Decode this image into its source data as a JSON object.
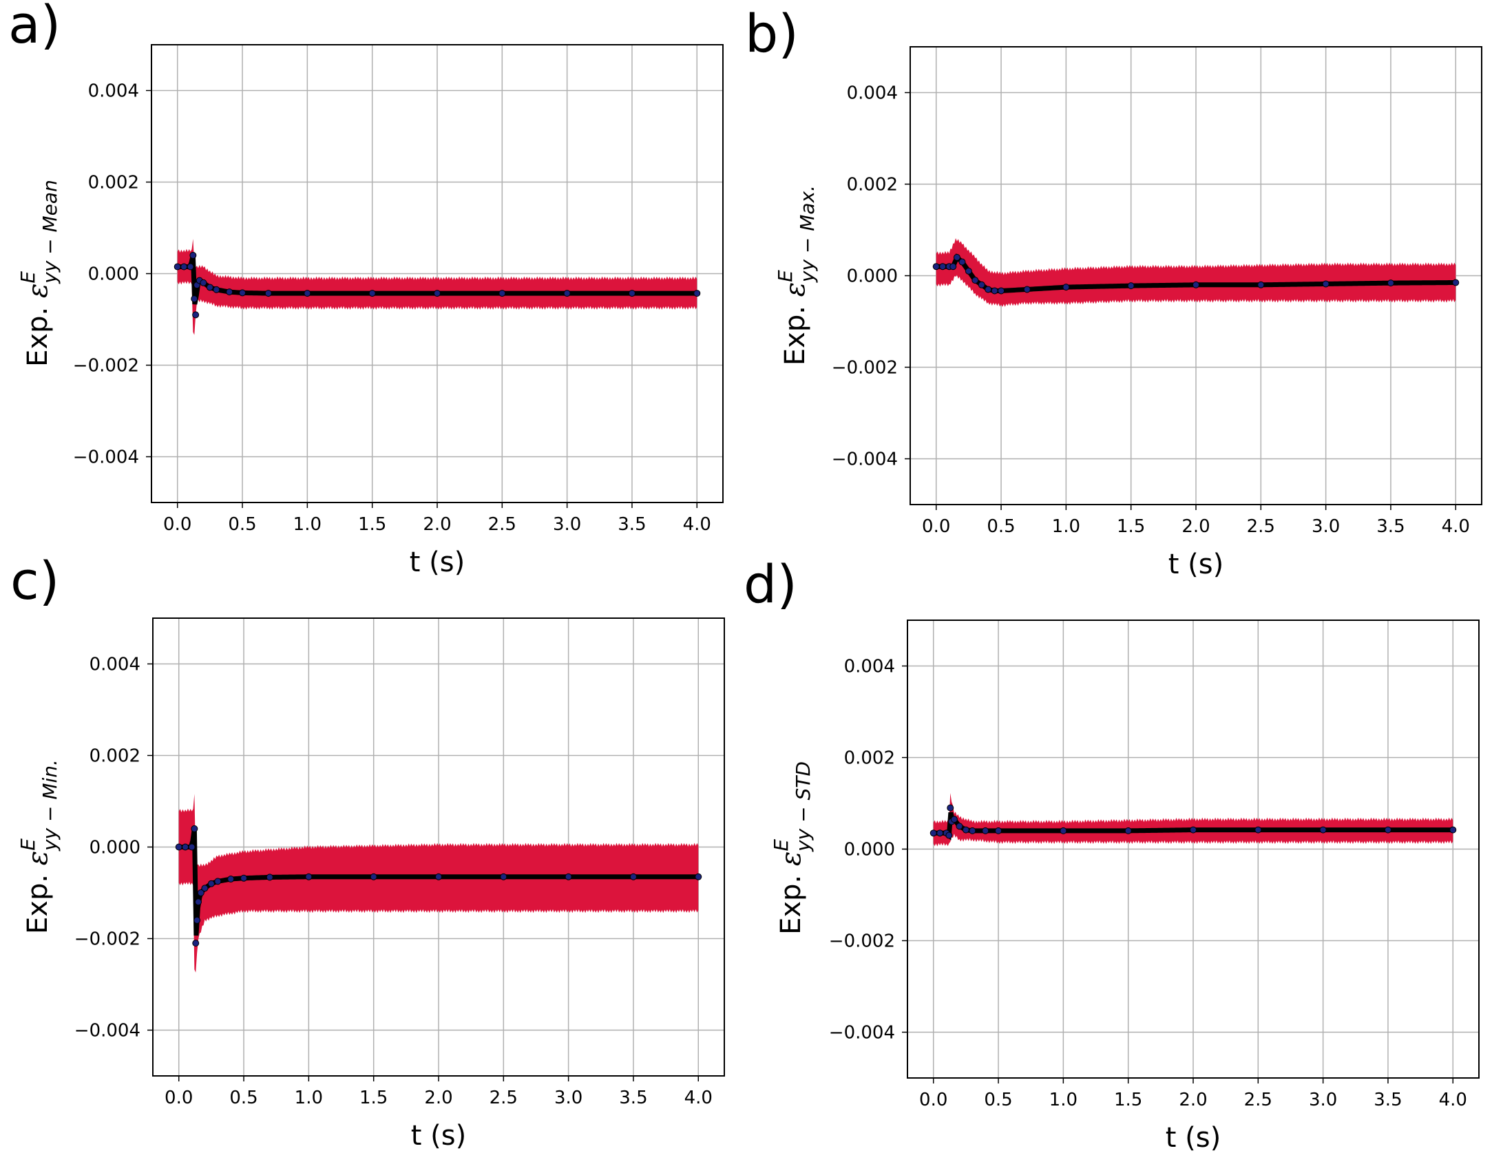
{
  "colors": {
    "band": "#dc143c",
    "line": "#000000",
    "marker": "#1a237e",
    "grid": "#b0b0b0",
    "axis": "#000000"
  },
  "chart_data": [
    {
      "panel": "a)",
      "type": "line",
      "xlabel": "t (s)",
      "ylabel": {
        "prefix": "Exp. ",
        "symbol": "ε",
        "sup": "E",
        "sub": "yy − Mean"
      },
      "xlim": [
        -0.2,
        4.2
      ],
      "ylim": [
        -0.005,
        0.005
      ],
      "xticks": [
        0.0,
        0.5,
        1.0,
        1.5,
        2.0,
        2.5,
        3.0,
        3.5,
        4.0
      ],
      "xtick_labels": [
        "0.0",
        "0.5",
        "1.0",
        "1.5",
        "2.0",
        "2.5",
        "3.0",
        "3.5",
        "4.0"
      ],
      "yticks": [
        0.004,
        0.002,
        0.0,
        -0.002,
        -0.004
      ],
      "ytick_labels": [
        "0.004",
        "0.002",
        "0.000",
        "−0.002",
        "−0.004"
      ],
      "grid": true,
      "series": [
        {
          "name": "mean",
          "x": [
            0.0,
            0.05,
            0.1,
            0.12,
            0.13,
            0.14,
            0.15,
            0.17,
            0.2,
            0.25,
            0.3,
            0.4,
            0.5,
            0.7,
            1.0,
            1.5,
            2.0,
            2.5,
            3.0,
            3.5,
            4.0
          ],
          "y": [
            0.00015,
            0.00015,
            0.00015,
            0.0004,
            -0.00055,
            -0.0009,
            -0.00025,
            -0.00015,
            -0.0002,
            -0.0003,
            -0.00035,
            -0.0004,
            -0.00042,
            -0.00043,
            -0.00043,
            -0.00043,
            -0.00043,
            -0.00043,
            -0.00043,
            -0.00043,
            -0.00043
          ]
        },
        {
          "name": "band",
          "x": [
            0.0,
            0.11,
            0.12,
            0.13,
            0.15,
            0.2,
            0.3,
            0.5,
            1.0,
            2.0,
            3.0,
            4.0
          ],
          "upper": [
            0.0005,
            0.0005,
            0.0008,
            0.0002,
            0.00015,
            0.00015,
            -5e-05,
            -0.0001,
            -0.0001,
            -0.0001,
            -0.0001,
            -0.0001
          ],
          "lower": [
            -0.0002,
            -0.0002,
            -0.0013,
            -0.0013,
            -0.0006,
            -0.0006,
            -0.0007,
            -0.00075,
            -0.00075,
            -0.00075,
            -0.00075,
            -0.00075
          ]
        }
      ]
    },
    {
      "panel": "b)",
      "type": "line",
      "xlabel": "t (s)",
      "ylabel": {
        "prefix": "Exp. ",
        "symbol": "ε",
        "sup": "E",
        "sub": "yy − Max."
      },
      "xlim": [
        -0.2,
        4.2
      ],
      "ylim": [
        -0.005,
        0.005
      ],
      "xticks": [
        0.0,
        0.5,
        1.0,
        1.5,
        2.0,
        2.5,
        3.0,
        3.5,
        4.0
      ],
      "xtick_labels": [
        "0.0",
        "0.5",
        "1.0",
        "1.5",
        "2.0",
        "2.5",
        "3.0",
        "3.5",
        "4.0"
      ],
      "yticks": [
        0.004,
        0.002,
        0.0,
        -0.002,
        -0.004
      ],
      "ytick_labels": [
        "0.004",
        "0.002",
        "0.000",
        "−0.002",
        "−0.004"
      ],
      "grid": true,
      "series": [
        {
          "name": "mean",
          "x": [
            0.0,
            0.05,
            0.1,
            0.13,
            0.16,
            0.2,
            0.25,
            0.3,
            0.35,
            0.4,
            0.45,
            0.5,
            0.7,
            1.0,
            1.5,
            2.0,
            2.5,
            3.0,
            3.5,
            4.0
          ],
          "y": [
            0.0002,
            0.0002,
            0.0002,
            0.0002,
            0.0004,
            0.0003,
            0.0001,
            -0.0001,
            -0.0002,
            -0.0003,
            -0.00033,
            -0.00033,
            -0.0003,
            -0.00025,
            -0.00022,
            -0.0002,
            -0.0002,
            -0.00018,
            -0.00016,
            -0.00015
          ]
        },
        {
          "name": "band",
          "x": [
            0.0,
            0.1,
            0.15,
            0.2,
            0.3,
            0.4,
            0.5,
            0.7,
            1.0,
            1.5,
            2.0,
            3.0,
            4.0
          ],
          "upper": [
            0.0005,
            0.0005,
            0.0008,
            0.0007,
            0.0004,
            0.0001,
            5e-05,
            0.0001,
            0.00015,
            0.0002,
            0.0002,
            0.00025,
            0.00025
          ],
          "lower": [
            -0.0002,
            -0.0002,
            0.0,
            -0.0001,
            -0.0004,
            -0.0006,
            -0.00065,
            -0.0006,
            -0.0006,
            -0.00055,
            -0.00055,
            -0.00055,
            -0.00055
          ]
        }
      ]
    },
    {
      "panel": "c)",
      "type": "line",
      "xlabel": "t (s)",
      "ylabel": {
        "prefix": "Exp. ",
        "symbol": "ε",
        "sup": "E",
        "sub": "yy − Min."
      },
      "xlim": [
        -0.2,
        4.2
      ],
      "ylim": [
        -0.005,
        0.005
      ],
      "xticks": [
        0.0,
        0.5,
        1.0,
        1.5,
        2.0,
        2.5,
        3.0,
        3.5,
        4.0
      ],
      "xtick_labels": [
        "0.0",
        "0.5",
        "1.0",
        "1.5",
        "2.0",
        "2.5",
        "3.0",
        "3.5",
        "4.0"
      ],
      "yticks": [
        0.004,
        0.002,
        0.0,
        -0.002,
        -0.004
      ],
      "ytick_labels": [
        "0.004",
        "0.002",
        "0.000",
        "−0.002",
        "−0.004"
      ],
      "grid": true,
      "series": [
        {
          "name": "mean",
          "x": [
            0.0,
            0.05,
            0.1,
            0.12,
            0.13,
            0.14,
            0.15,
            0.17,
            0.2,
            0.25,
            0.3,
            0.4,
            0.5,
            0.7,
            1.0,
            1.5,
            2.0,
            2.5,
            3.0,
            3.5,
            4.0
          ],
          "y": [
            0.0,
            0.0,
            0.0,
            0.0004,
            -0.0021,
            -0.0016,
            -0.0012,
            -0.001,
            -0.0009,
            -0.0008,
            -0.00075,
            -0.0007,
            -0.00068,
            -0.00066,
            -0.00065,
            -0.00065,
            -0.00065,
            -0.00065,
            -0.00065,
            -0.00065,
            -0.00065
          ]
        },
        {
          "name": "band",
          "x": [
            0.0,
            0.11,
            0.12,
            0.13,
            0.15,
            0.2,
            0.3,
            0.5,
            1.0,
            2.0,
            3.0,
            4.0
          ],
          "upper": [
            0.0008,
            0.0008,
            0.0012,
            -0.0003,
            -0.0004,
            -0.0004,
            -0.0002,
            -0.0001,
            0.0,
            5e-05,
            5e-05,
            5e-05
          ],
          "lower": [
            -0.0008,
            -0.0008,
            -0.0027,
            -0.0027,
            -0.002,
            -0.0016,
            -0.0015,
            -0.0014,
            -0.0014,
            -0.0014,
            -0.0014,
            -0.0014
          ]
        }
      ]
    },
    {
      "panel": "d)",
      "type": "line",
      "xlabel": "t (s)",
      "ylabel": {
        "prefix": "Exp. ",
        "symbol": "ε",
        "sup": "E",
        "sub": "yy − STD"
      },
      "xlim": [
        -0.2,
        4.2
      ],
      "ylim": [
        -0.005,
        0.005
      ],
      "xticks": [
        0.0,
        0.5,
        1.0,
        1.5,
        2.0,
        2.5,
        3.0,
        3.5,
        4.0
      ],
      "xtick_labels": [
        "0.0",
        "0.5",
        "1.0",
        "1.5",
        "2.0",
        "2.5",
        "3.0",
        "3.5",
        "4.0"
      ],
      "yticks": [
        0.004,
        0.002,
        0.0,
        -0.002,
        -0.004
      ],
      "ytick_labels": [
        "0.004",
        "0.002",
        "0.000",
        "−0.002",
        "−0.004"
      ],
      "grid": true,
      "series": [
        {
          "name": "mean",
          "x": [
            0.0,
            0.05,
            0.1,
            0.12,
            0.13,
            0.14,
            0.16,
            0.2,
            0.25,
            0.3,
            0.4,
            0.5,
            1.0,
            1.5,
            2.0,
            2.5,
            3.0,
            3.5,
            4.0
          ],
          "y": [
            0.00035,
            0.00035,
            0.00035,
            0.0003,
            0.0009,
            0.0006,
            0.00065,
            0.0005,
            0.00042,
            0.0004,
            0.0004,
            0.0004,
            0.0004,
            0.0004,
            0.00042,
            0.00042,
            0.00042,
            0.00042,
            0.00042
          ]
        },
        {
          "name": "band",
          "x": [
            0.0,
            0.12,
            0.13,
            0.16,
            0.2,
            0.3,
            0.5,
            1.0,
            2.0,
            3.0,
            4.0
          ],
          "upper": [
            0.0006,
            0.0006,
            0.0012,
            0.0008,
            0.0007,
            0.0006,
            0.0006,
            0.0006,
            0.00065,
            0.00065,
            0.00065
          ],
          "lower": [
            0.0001,
            0.0001,
            0.0002,
            0.0003,
            0.0002,
            0.0002,
            0.00015,
            0.00015,
            0.00015,
            0.00015,
            0.00015
          ]
        }
      ]
    }
  ]
}
